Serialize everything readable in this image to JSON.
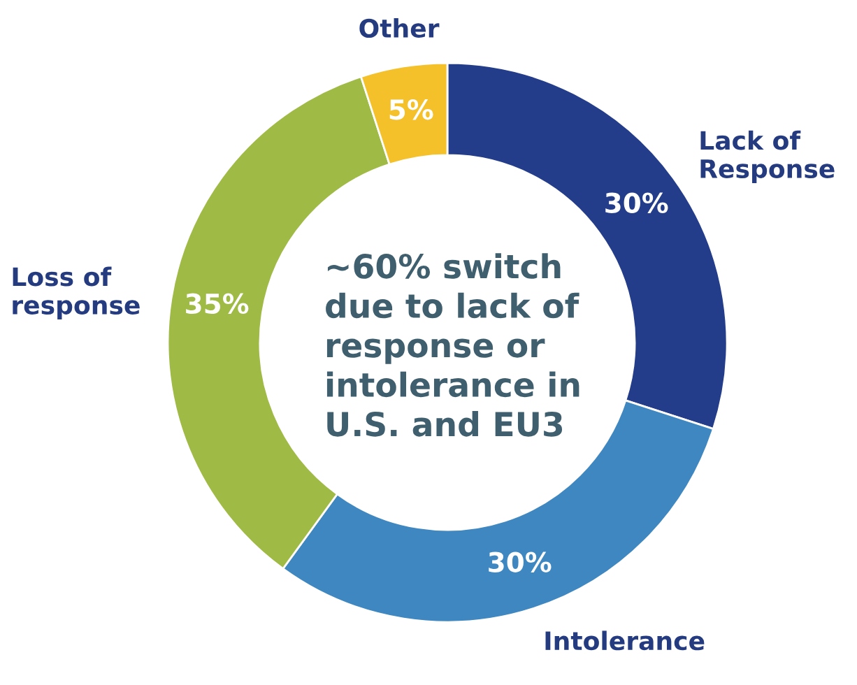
{
  "chart_data": {
    "type": "donut",
    "categories": [
      "Lack of\nResponse",
      "Intolerance",
      "Loss of\nresponse",
      "Other"
    ],
    "values": [
      30,
      30,
      35,
      5
    ],
    "colors": [
      "#243d8a",
      "#3e87c0",
      "#9fba45",
      "#f5c12a"
    ],
    "value_labels": [
      "30%",
      "30%",
      "35%",
      "5%"
    ],
    "annotations": [
      "~60% switch\ndue to lack of\nresponse or\nintolerance in\nU.S. and EU3"
    ]
  }
}
